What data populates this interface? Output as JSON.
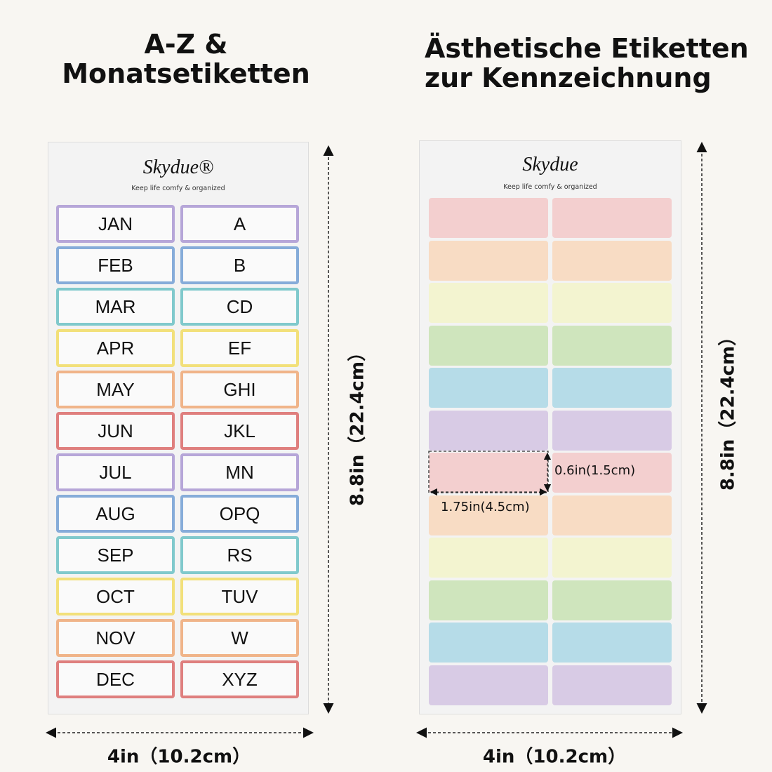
{
  "left": {
    "title": [
      "A-Z &",
      "Monatsetiketten"
    ],
    "brand": "Skydue®",
    "tagline": "Keep life comfy & organized",
    "labels": [
      [
        "JAN",
        "A"
      ],
      [
        "FEB",
        "B"
      ],
      [
        "MAR",
        "CD"
      ],
      [
        "APR",
        "EF"
      ],
      [
        "MAY",
        "GHI"
      ],
      [
        "JUN",
        "JKL"
      ],
      [
        "JUL",
        "MN"
      ],
      [
        "AUG",
        "OPQ"
      ],
      [
        "SEP",
        "RS"
      ],
      [
        "OCT",
        "TUV"
      ],
      [
        "NOV",
        "W"
      ],
      [
        "DEC",
        "XYZ"
      ]
    ],
    "height": "8.8in（22.4cm）",
    "width": "4in（10.2cm）"
  },
  "right": {
    "title": [
      "Ästhetische Etiketten",
      "zur Kennzeichnung"
    ],
    "brand": "Skydue",
    "tagline": "Keep life comfy & organized",
    "label_height": "0.6in(1.5cm)",
    "label_width": "1.75in(4.5cm)",
    "height": "8.8in（22.4cm）",
    "width": "4in（10.2cm）"
  }
}
